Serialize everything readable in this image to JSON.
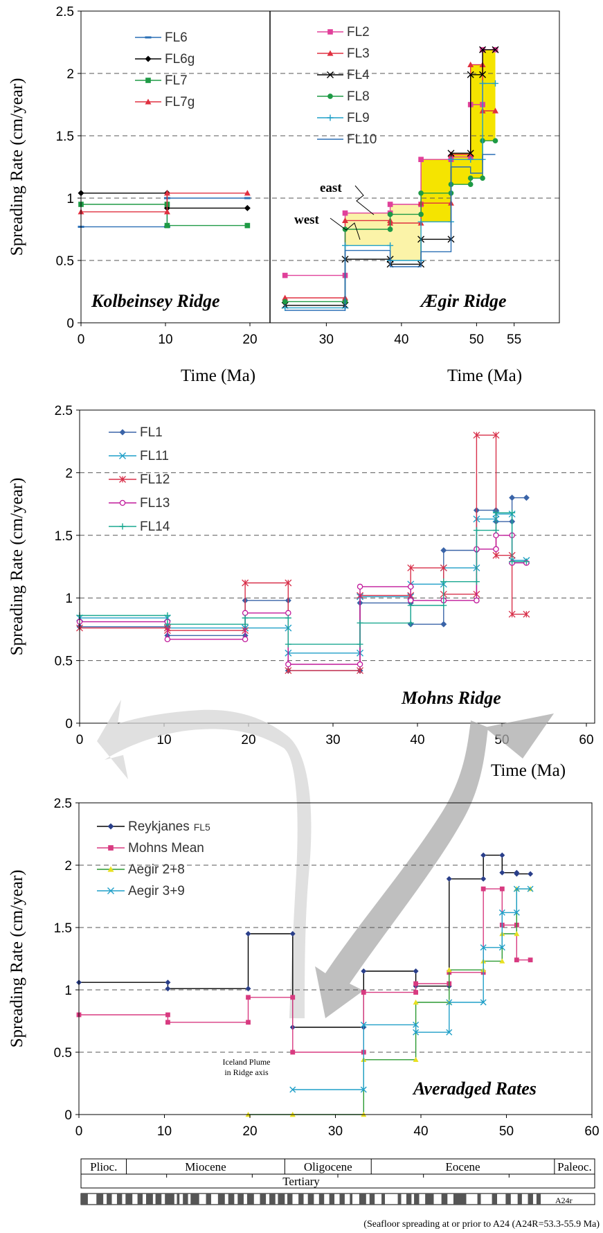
{
  "chart_data": [
    {
      "id": "p1",
      "type": "line",
      "subtype": "step",
      "ylabel": "Spreading Rate (cm/year)",
      "ylim": [
        0,
        2.5
      ],
      "yticks": [
        0,
        0.5,
        1,
        1.5,
        2,
        2.5
      ],
      "ytick_labels": [
        "0",
        "0.5",
        "1",
        "1.5",
        "2",
        "2.5"
      ],
      "grid": "dashed horizontal at 0.5, 1, 1.5, 2",
      "left_panel": {
        "annotation": "Kolbeinsey Ridge",
        "xlabel": "Time (Ma)",
        "xlim": [
          0,
          22.5
        ],
        "xticks": [
          0,
          10,
          20
        ],
        "xtick_labels": [
          "0",
          "10",
          "20"
        ],
        "legend": "top-left",
        "series": [
          {
            "name": "FL6",
            "color": "#2a6fb5",
            "marker": "dash",
            "x": [
              0,
              10.2,
              10.2,
              19.7
            ],
            "y": [
              0.77,
              0.77,
              1.0,
              1.0
            ]
          },
          {
            "name": "FL6g",
            "color": "#000000",
            "marker": "diamond",
            "x": [
              0,
              10.2,
              10.2,
              19.7
            ],
            "y": [
              1.04,
              1.04,
              0.92,
              0.92
            ]
          },
          {
            "name": "FL7",
            "color": "#1e9a45",
            "marker": "square",
            "x": [
              0,
              10.2,
              10.2,
              19.7
            ],
            "y": [
              0.95,
              0.95,
              0.78,
              0.78
            ]
          },
          {
            "name": "FL7g",
            "color": "#e03040",
            "marker": "triangle",
            "x": [
              0,
              10.2,
              10.2,
              19.7
            ],
            "y": [
              0.89,
              0.89,
              1.04,
              1.04
            ]
          }
        ]
      },
      "right_panel": {
        "annotation": "Ægir Ridge",
        "xlabel": "Time (Ma)",
        "xlim": [
          22.5,
          55
        ],
        "xticks": [
          30,
          40,
          50,
          55
        ],
        "xtick_labels": [
          "30",
          "40",
          "50",
          "55"
        ],
        "legend": "top-left",
        "labels": [
          "east",
          "west"
        ],
        "series": [
          {
            "name": "FL2",
            "color": "#e0409a",
            "marker": "square",
            "x": [
              24.5,
              32.5,
              32.5,
              38.5,
              38.5,
              42.6,
              42.6,
              46.6,
              46.6,
              49.2,
              49.2,
              50.8,
              50.8,
              52.5
            ],
            "y": [
              0.38,
              0.38,
              0.88,
              0.88,
              0.95,
              0.95,
              1.31,
              1.31,
              1.33,
              1.33,
              1.75,
              1.75,
              2.19,
              2.19
            ]
          },
          {
            "name": "FL3",
            "color": "#e03040",
            "marker": "triangle",
            "x": [
              24.5,
              32.5,
              32.5,
              38.5,
              38.5,
              42.6,
              42.6,
              46.6,
              46.6,
              49.2,
              49.2,
              50.8,
              50.8,
              52.5
            ],
            "y": [
              0.2,
              0.2,
              0.82,
              0.82,
              0.8,
              0.8,
              0.96,
              0.96,
              1.35,
              1.35,
              2.07,
              2.07,
              1.7,
              1.7
            ]
          },
          {
            "name": "FL4",
            "color": "#000000",
            "marker": "x",
            "x": [
              24.5,
              32.5,
              32.5,
              38.5,
              38.5,
              42.6,
              42.6,
              46.6,
              46.6,
              49.2,
              49.2,
              50.8,
              50.8,
              52.5
            ],
            "y": [
              0.14,
              0.14,
              0.51,
              0.51,
              0.47,
              0.47,
              0.67,
              0.67,
              1.36,
              1.36,
              1.99,
              1.99,
              2.19,
              2.19
            ]
          },
          {
            "name": "FL8",
            "color": "#1e9a45",
            "marker": "circle",
            "x": [
              24.5,
              32.5,
              32.5,
              38.5,
              38.5,
              42.6,
              42.6,
              46.6,
              46.6,
              49.2,
              49.2,
              50.8,
              50.8,
              52.5
            ],
            "y": [
              0.17,
              0.17,
              0.75,
              0.75,
              0.87,
              0.87,
              1.04,
              1.04,
              1.11,
              1.11,
              1.16,
              1.16,
              1.46,
              1.46
            ]
          },
          {
            "name": "FL9",
            "color": "#1f9fc8",
            "marker": "plus",
            "x": [
              24.5,
              32.5,
              32.5,
              38.5,
              38.5,
              42.6,
              42.6,
              46.6,
              46.6,
              49.2,
              49.2,
              50.8,
              50.8,
              52.5
            ],
            "y": [
              0.12,
              0.12,
              0.62,
              0.62,
              0.5,
              0.5,
              0.81,
              0.81,
              1.31,
              1.31,
              1.31,
              1.31,
              1.92,
              1.92
            ]
          },
          {
            "name": "FL10",
            "color": "#2a6fb5",
            "marker": "none",
            "x": [
              24.5,
              32.5,
              32.5,
              38.5,
              38.5,
              42.6,
              42.6,
              46.6,
              46.6,
              49.2,
              49.2,
              50.8,
              50.8,
              52.5
            ],
            "y": [
              0.1,
              0.1,
              0.58,
              0.58,
              0.45,
              0.45,
              0.57,
              0.57,
              1.25,
              1.25,
              1.2,
              1.2,
              1.35,
              1.35
            ]
          }
        ]
      }
    },
    {
      "id": "p2",
      "type": "line",
      "subtype": "step",
      "annotation": "Mohns Ridge",
      "xlabel": "Time (Ma)",
      "ylabel": "Spreading Rate (cm/year)",
      "xlim": [
        0,
        60
      ],
      "ylim": [
        0,
        2.5
      ],
      "xticks": [
        0,
        10,
        20,
        30,
        40,
        50,
        60
      ],
      "xtick_labels": [
        "0",
        "10",
        "20",
        "30",
        "40",
        "50",
        "60"
      ],
      "yticks": [
        0,
        0.5,
        1,
        1.5,
        2,
        2.5
      ],
      "ytick_labels": [
        "0",
        "0.5",
        "1",
        "1.5",
        "2",
        "2.5"
      ],
      "legend": "top-left",
      "series": [
        {
          "name": "FL1",
          "color": "#3a64a8",
          "marker": "diamond",
          "x": [
            0,
            10.4,
            10.4,
            19.6,
            19.6,
            24.7,
            24.7,
            33.2,
            33.2,
            39.2,
            39.2,
            43.1,
            43.1,
            47.0,
            47.0,
            49.3,
            49.3,
            51.2,
            51.2,
            52.9
          ],
          "y": [
            0.77,
            0.77,
            0.7,
            0.7,
            0.98,
            0.98,
            0.42,
            0.42,
            0.96,
            0.96,
            0.79,
            0.79,
            1.38,
            1.38,
            1.7,
            1.7,
            1.61,
            1.61,
            1.8,
            1.8
          ]
        },
        {
          "name": "FL11",
          "color": "#1f9fc8",
          "marker": "x",
          "x": [
            0,
            10.4,
            10.4,
            19.6,
            19.6,
            24.7,
            24.7,
            33.2,
            33.2,
            39.2,
            39.2,
            43.1,
            43.1,
            47.0,
            47.0,
            49.3,
            49.3,
            51.2,
            51.2,
            52.9
          ],
          "y": [
            0.84,
            0.84,
            0.76,
            0.76,
            0.76,
            0.76,
            0.56,
            0.56,
            1.01,
            1.01,
            1.11,
            1.11,
            1.24,
            1.24,
            1.63,
            1.63,
            1.67,
            1.67,
            1.3,
            1.3
          ]
        },
        {
          "name": "FL12",
          "color": "#d8304a",
          "marker": "asterisk",
          "x": [
            0,
            10.4,
            10.4,
            19.6,
            19.6,
            24.7,
            24.7,
            33.2,
            33.2,
            39.2,
            39.2,
            43.1,
            43.1,
            47.0,
            47.0,
            49.3,
            49.3,
            51.2,
            51.2,
            52.9
          ],
          "y": [
            0.76,
            0.76,
            0.74,
            0.74,
            1.12,
            1.12,
            0.42,
            0.42,
            1.02,
            1.02,
            1.24,
            1.24,
            1.03,
            1.03,
            2.3,
            2.3,
            1.34,
            1.34,
            0.87,
            0.87
          ]
        },
        {
          "name": "FL13",
          "color": "#c0189a",
          "marker": "circle",
          "x": [
            0,
            10.4,
            10.4,
            19.6,
            19.6,
            24.7,
            24.7,
            33.2,
            33.2,
            39.2,
            39.2,
            43.1,
            43.1,
            47.0,
            47.0,
            49.3,
            49.3,
            51.2,
            51.2,
            52.9
          ],
          "y": [
            0.81,
            0.81,
            0.67,
            0.67,
            0.88,
            0.88,
            0.47,
            0.47,
            1.09,
            1.09,
            0.98,
            0.98,
            0.98,
            0.98,
            1.39,
            1.39,
            1.5,
            1.5,
            1.28,
            1.28
          ]
        },
        {
          "name": "FL14",
          "color": "#1aa890",
          "marker": "plus",
          "x": [
            0,
            10.4,
            10.4,
            19.6,
            19.6,
            24.7,
            24.7,
            33.2,
            33.2,
            39.2,
            39.2,
            43.1,
            43.1,
            47.0,
            47.0,
            49.3,
            49.3,
            51.2,
            51.2,
            52.9
          ],
          "y": [
            0.86,
            0.86,
            0.79,
            0.79,
            0.84,
            0.84,
            0.63,
            0.63,
            0.8,
            0.8,
            0.94,
            0.94,
            1.13,
            1.13,
            1.54,
            1.54,
            1.68,
            1.68,
            1.29,
            1.29
          ]
        }
      ]
    },
    {
      "id": "p3",
      "type": "line",
      "subtype": "step",
      "annotation": "Averadged Rates",
      "ylabel": "Spreading Rate (cm/year)",
      "xlim": [
        0,
        60
      ],
      "ylim": [
        0,
        2.5
      ],
      "xticks": [
        0,
        10,
        20,
        30,
        40,
        50,
        60
      ],
      "xtick_labels": [
        "0",
        "10",
        "20",
        "30",
        "40",
        "50",
        "60"
      ],
      "yticks": [
        0,
        0.5,
        1,
        1.5,
        2,
        2.5
      ],
      "ytick_labels": [
        "0",
        "0.5",
        "1",
        "1.5",
        "2",
        "2.5"
      ],
      "legend": "top-left",
      "plume_label": [
        "Iceland Plume",
        "in Ridge axis"
      ],
      "series": [
        {
          "name": "Reykjanes",
          "name_suffix": "FL5",
          "color": "#2a3f8a",
          "marker": "diamond",
          "line_color": "#000000",
          "x": [
            0,
            10.4,
            10.4,
            19.8,
            19.8,
            25.0,
            25.0,
            33.3,
            33.3,
            39.4,
            39.4,
            43.3,
            43.3,
            47.3,
            47.3,
            49.5,
            49.5,
            51.2,
            51.2,
            52.8
          ],
          "y": [
            1.06,
            1.06,
            1.01,
            1.01,
            1.45,
            1.45,
            0.7,
            0.7,
            1.15,
            1.15,
            1.03,
            1.03,
            1.89,
            1.89,
            2.08,
            2.08,
            1.94,
            1.94,
            1.93,
            1.93
          ]
        },
        {
          "name": "Mohns Mean",
          "color": "#d83a80",
          "marker": "square",
          "line_color": "#d83a80",
          "x": [
            0,
            10.4,
            10.4,
            19.8,
            19.8,
            25.0,
            25.0,
            33.3,
            33.3,
            39.4,
            39.4,
            43.3,
            43.3,
            47.3,
            47.3,
            49.5,
            49.5,
            51.2,
            51.2,
            52.8
          ],
          "y": [
            0.8,
            0.8,
            0.74,
            0.74,
            0.94,
            0.94,
            0.5,
            0.5,
            0.98,
            0.98,
            1.05,
            1.05,
            1.14,
            1.14,
            1.81,
            1.81,
            1.52,
            1.52,
            1.24,
            1.24
          ]
        },
        {
          "name": "Aegir 2+8",
          "color": "#e8e020",
          "marker": "triangle",
          "line_color": "#2a9a30",
          "x": [
            19.8,
            25.0,
            25.0,
            33.3,
            33.3,
            39.4,
            39.4,
            43.3,
            43.3,
            47.3,
            47.3,
            49.5,
            49.5,
            51.2,
            51.2,
            52.8
          ],
          "y": [
            0.0,
            0.0,
            0.0,
            0.0,
            0.44,
            0.44,
            0.9,
            0.9,
            1.16,
            1.16,
            1.23,
            1.23,
            1.45,
            1.45,
            1.81,
            1.81
          ]
        },
        {
          "name": "Aegir 3+9",
          "color": "#1f9fc8",
          "marker": "x",
          "line_color": "#1f9fc8",
          "x": [
            25.0,
            33.3,
            33.3,
            39.4,
            39.4,
            43.3,
            43.3,
            47.3,
            47.3,
            49.5,
            49.5,
            51.2,
            51.2,
            52.8
          ],
          "y": [
            0.2,
            0.2,
            0.72,
            0.72,
            0.66,
            0.66,
            0.9,
            0.9,
            1.34,
            1.34,
            1.62,
            1.62,
            1.81,
            1.81
          ]
        }
      ]
    }
  ],
  "timescale": {
    "epochs": [
      {
        "label": "Plioc.",
        "from": 0,
        "to": 5.3
      },
      {
        "label": "Miocene",
        "from": 5.3,
        "to": 23.8
      },
      {
        "label": "Oligocene",
        "from": 23.8,
        "to": 33.9
      },
      {
        "label": "Eocene",
        "from": 33.9,
        "to": 55.3
      },
      {
        "label": "Paleoc.",
        "from": 55.3,
        "to": 60
      }
    ],
    "period": "Tertiary",
    "chron_label": "A24r",
    "footnote": "(Seafloor spreading at or prior to A24 (A24R=53.3-55.9 Ma)"
  }
}
